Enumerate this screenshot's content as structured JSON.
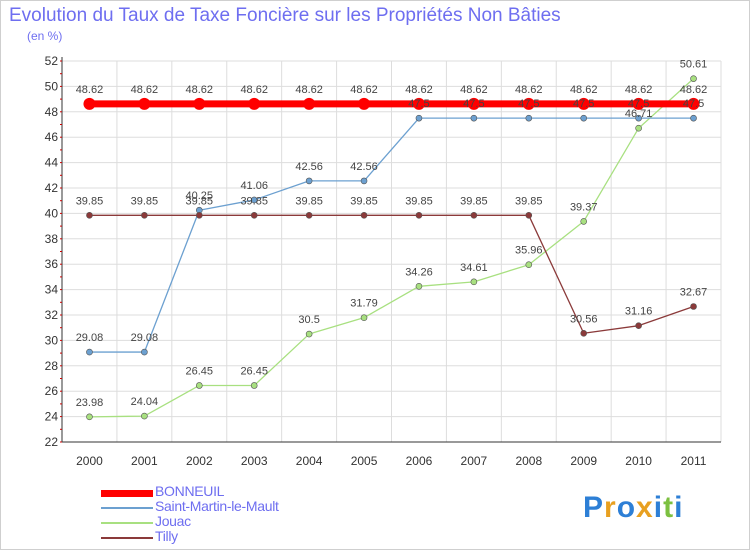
{
  "header": {
    "title": "Evolution du Taux de Taxe Foncière sur les Propriétés Non Bâties",
    "subtitle": "(en %)"
  },
  "chart_data": {
    "type": "line",
    "title": "Evolution du Taux de Taxe Foncière sur les Propriétés Non Bâties",
    "subtitle": "(en %)",
    "x": [
      "2000",
      "2001",
      "2002",
      "2003",
      "2004",
      "2005",
      "2006",
      "2007",
      "2008",
      "2009",
      "2010",
      "2011"
    ],
    "ylim": [
      22,
      52
    ],
    "yticks": [
      22,
      24,
      26,
      28,
      30,
      32,
      34,
      36,
      38,
      40,
      42,
      44,
      46,
      48,
      50,
      52
    ],
    "grid": true,
    "legend_position": "bottom-left",
    "series": [
      {
        "name": "BONNEUIL",
        "color": "#ff0000",
        "values": [
          48.62,
          48.62,
          48.62,
          48.62,
          48.62,
          48.62,
          48.62,
          48.62,
          48.62,
          48.62,
          48.62,
          48.62
        ],
        "labels": [
          "48.62",
          "48.62",
          "48.62",
          "48.62",
          "48.62",
          "48.62",
          "48.62",
          "48.62",
          "48.62",
          "48.62",
          "48.62",
          "48.62"
        ]
      },
      {
        "name": "Saint-Martin-le-Mault",
        "color": "#6ca0d0",
        "values": [
          29.08,
          29.08,
          40.25,
          41.06,
          42.56,
          42.56,
          47.5,
          47.5,
          47.5,
          47.5,
          47.5,
          47.5
        ],
        "labels": [
          "29.08",
          "29.08",
          "40.25",
          "41.06",
          "42.56",
          "42.56",
          "47.5",
          "47.5",
          "47.5",
          "47.5",
          "47.5",
          "47.5"
        ]
      },
      {
        "name": "Jouac",
        "color": "#a8e080",
        "values": [
          23.98,
          24.04,
          26.45,
          26.45,
          30.5,
          31.79,
          34.26,
          34.61,
          35.96,
          39.37,
          46.71,
          50.61
        ],
        "labels": [
          "23.98",
          "24.04",
          "26.45",
          "26.45",
          "30.5",
          "31.79",
          "34.26",
          "34.61",
          "35.96",
          "39.37",
          "46.71",
          "50.61"
        ]
      },
      {
        "name": "Tilly",
        "color": "#8b3a3a",
        "values": [
          39.85,
          39.85,
          39.85,
          39.85,
          39.85,
          39.85,
          39.85,
          39.85,
          39.85,
          30.56,
          31.16,
          32.67
        ],
        "labels": [
          "39.85",
          "39.85",
          "39.85",
          "39.85",
          "39.85",
          "39.85",
          "39.85",
          "39.85",
          "39.85",
          "30.56",
          "31.16",
          "32.67"
        ]
      }
    ]
  },
  "logo": {
    "letters": [
      "P",
      "r",
      "o",
      "x",
      "i",
      "t",
      "i"
    ],
    "colors": [
      "#2d7fd6",
      "#e8a020",
      "#2d7fd6",
      "#e8a020",
      "#2d7fd6",
      "#7cc040",
      "#2d7fd6"
    ]
  }
}
